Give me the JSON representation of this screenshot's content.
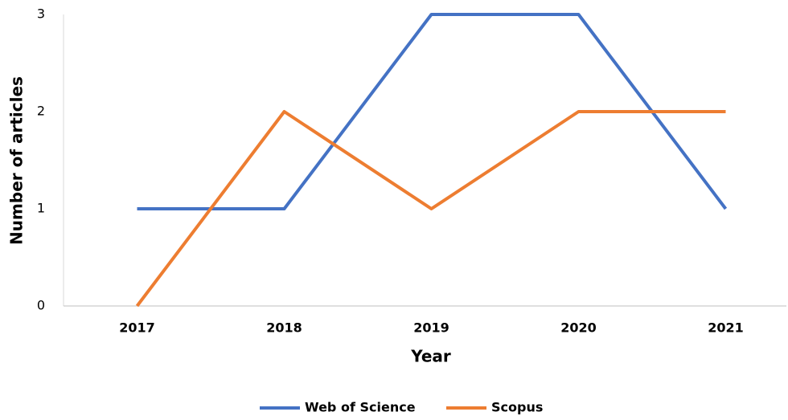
{
  "chart_data": {
    "type": "line",
    "x_label": "Year",
    "y_label": "Number of articles",
    "categories": [
      "2017",
      "2018",
      "2019",
      "2020",
      "2021"
    ],
    "series": [
      {
        "name": "Web of Science",
        "color": "#4472c4",
        "values": [
          1,
          1,
          3,
          3,
          1
        ]
      },
      {
        "name": "Scopus",
        "color": "#ed7d31",
        "values": [
          0,
          2,
          1,
          2,
          2
        ]
      }
    ],
    "ylim": [
      0,
      3
    ],
    "yticks": [
      0,
      1,
      2,
      3
    ],
    "grid": false,
    "legend": "bottom"
  }
}
